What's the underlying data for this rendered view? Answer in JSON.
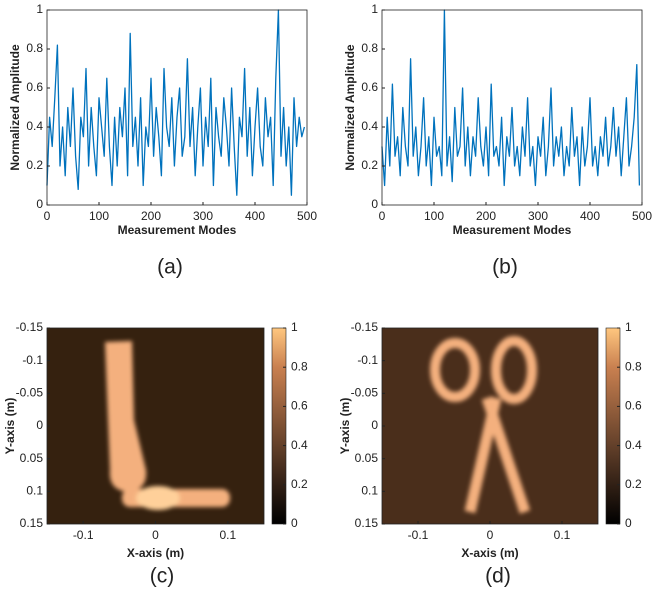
{
  "chart_data": [
    {
      "type": "line",
      "caption": "(a)",
      "x_label": "Measurement Modes",
      "y_label": "Normalized Amplitude",
      "color": "#0072bd",
      "xlim": [
        0,
        500
      ],
      "xticks": [
        0,
        100,
        200,
        300,
        400,
        500
      ],
      "ylim": [
        0,
        1
      ],
      "yticks": [
        0,
        0.2,
        0.4,
        0.6,
        0.8,
        1
      ],
      "x": [
        0,
        5,
        10,
        15,
        20,
        25,
        30,
        35,
        40,
        45,
        50,
        55,
        60,
        65,
        70,
        75,
        80,
        85,
        90,
        95,
        100,
        105,
        110,
        115,
        120,
        125,
        130,
        135,
        140,
        145,
        150,
        155,
        160,
        165,
        170,
        175,
        180,
        185,
        190,
        195,
        200,
        205,
        210,
        215,
        220,
        225,
        230,
        235,
        240,
        245,
        250,
        255,
        260,
        265,
        270,
        275,
        280,
        285,
        290,
        295,
        300,
        305,
        310,
        315,
        320,
        325,
        330,
        335,
        340,
        345,
        350,
        355,
        360,
        365,
        370,
        375,
        380,
        385,
        390,
        395,
        400,
        405,
        410,
        415,
        420,
        425,
        430,
        435,
        440,
        445,
        450,
        455,
        460,
        465,
        470,
        475,
        480,
        485,
        490,
        495
      ],
      "values": [
        0.1,
        0.45,
        0.3,
        0.55,
        0.82,
        0.2,
        0.4,
        0.15,
        0.5,
        0.3,
        0.6,
        0.25,
        0.08,
        0.45,
        0.35,
        0.7,
        0.2,
        0.5,
        0.3,
        0.15,
        0.55,
        0.4,
        0.25,
        0.65,
        0.3,
        0.1,
        0.45,
        0.2,
        0.5,
        0.35,
        0.6,
        0.15,
        0.88,
        0.3,
        0.45,
        0.2,
        0.55,
        0.1,
        0.4,
        0.3,
        0.65,
        0.25,
        0.5,
        0.35,
        0.15,
        0.7,
        0.4,
        0.3,
        0.55,
        0.2,
        0.45,
        0.6,
        0.25,
        0.35,
        0.75,
        0.3,
        0.5,
        0.15,
        0.4,
        0.6,
        0.2,
        0.45,
        0.3,
        0.65,
        0.1,
        0.5,
        0.35,
        0.25,
        0.55,
        0.4,
        0.2,
        0.6,
        0.3,
        0.05,
        0.45,
        0.35,
        0.7,
        0.25,
        0.5,
        0.15,
        0.4,
        0.6,
        0.3,
        0.2,
        0.55,
        0.35,
        0.45,
        0.1,
        0.65,
        1,
        0.25,
        0.5,
        0.2,
        0.4,
        0.05,
        0.55,
        0.3,
        0.45,
        0.35,
        0.4
      ]
    },
    {
      "type": "line",
      "caption": "(b)",
      "x_label": "Measurement Modes",
      "y_label": "Normalized Amplitude",
      "color": "#0072bd",
      "xlim": [
        0,
        500
      ],
      "xticks": [
        0,
        100,
        200,
        300,
        400,
        500
      ],
      "ylim": [
        0,
        1
      ],
      "yticks": [
        0,
        0.2,
        0.4,
        0.6,
        0.8,
        1
      ],
      "x": [
        0,
        5,
        10,
        15,
        20,
        25,
        30,
        35,
        40,
        45,
        50,
        55,
        60,
        65,
        70,
        75,
        80,
        85,
        90,
        95,
        100,
        105,
        110,
        115,
        120,
        125,
        130,
        135,
        140,
        145,
        150,
        155,
        160,
        165,
        170,
        175,
        180,
        185,
        190,
        195,
        200,
        205,
        210,
        215,
        220,
        225,
        230,
        235,
        240,
        245,
        250,
        255,
        260,
        265,
        270,
        275,
        280,
        285,
        290,
        295,
        300,
        305,
        310,
        315,
        320,
        325,
        330,
        335,
        340,
        345,
        350,
        355,
        360,
        365,
        370,
        375,
        380,
        385,
        390,
        395,
        400,
        405,
        410,
        415,
        420,
        425,
        430,
        435,
        440,
        445,
        450,
        455,
        460,
        465,
        470,
        475,
        480,
        485,
        490,
        495
      ],
      "values": [
        0.3,
        0.1,
        0.45,
        0.2,
        0.62,
        0.25,
        0.35,
        0.15,
        0.5,
        0.3,
        0.2,
        0.75,
        0.25,
        0.4,
        0.15,
        0.3,
        0.55,
        0.2,
        0.35,
        0.1,
        0.45,
        0.25,
        0.3,
        0.15,
        1,
        0.2,
        0.35,
        0.12,
        0.5,
        0.25,
        0.3,
        0.6,
        0.2,
        0.4,
        0.15,
        0.35,
        0.25,
        0.55,
        0.3,
        0.2,
        0.4,
        0.15,
        0.62,
        0.25,
        0.3,
        0.2,
        0.45,
        0.1,
        0.35,
        0.25,
        0.5,
        0.2,
        0.3,
        0.15,
        0.4,
        0.25,
        0.55,
        0.2,
        0.3,
        0.1,
        0.35,
        0.25,
        0.45,
        0.15,
        0.3,
        0.6,
        0.2,
        0.35,
        0.25,
        0.4,
        0.15,
        0.3,
        0.2,
        0.5,
        0.25,
        0.35,
        0.1,
        0.4,
        0.2,
        0.3,
        0.55,
        0.2,
        0.3,
        0.15,
        0.35,
        0.25,
        0.45,
        0.2,
        0.3,
        0.5,
        0.25,
        0.4,
        0.15,
        0.35,
        0.55,
        0.2,
        0.3,
        0.45,
        0.72,
        0.1
      ]
    },
    {
      "type": "heatmap",
      "caption": "(c)",
      "x_label": "X-axis (m)",
      "y_label": "Y-axis (m)",
      "xlim": [
        -0.15,
        0.15
      ],
      "xticks": [
        -0.1,
        0,
        0.1
      ],
      "ylim": [
        -0.15,
        0.15
      ],
      "yticks": [
        -0.15,
        -0.1,
        -0.05,
        0,
        0.05,
        0.1,
        0.15
      ],
      "y_reversed": true,
      "clim": [
        0,
        1
      ],
      "cticks": [
        0,
        0.2,
        0.4,
        0.6,
        0.8,
        1
      ]
    },
    {
      "type": "heatmap",
      "caption": "(d)",
      "x_label": "X-axis (m)",
      "y_label": "Y-axis (m)",
      "xlim": [
        -0.15,
        0.15
      ],
      "xticks": [
        -0.1,
        0,
        0.1
      ],
      "ylim": [
        -0.15,
        0.15
      ],
      "yticks": [
        -0.15,
        -0.1,
        -0.05,
        0,
        0.05,
        0.1,
        0.15
      ],
      "y_reversed": true,
      "clim": [
        0,
        1
      ],
      "cticks": [
        0,
        0.2,
        0.4,
        0.6,
        0.8,
        1
      ]
    }
  ]
}
